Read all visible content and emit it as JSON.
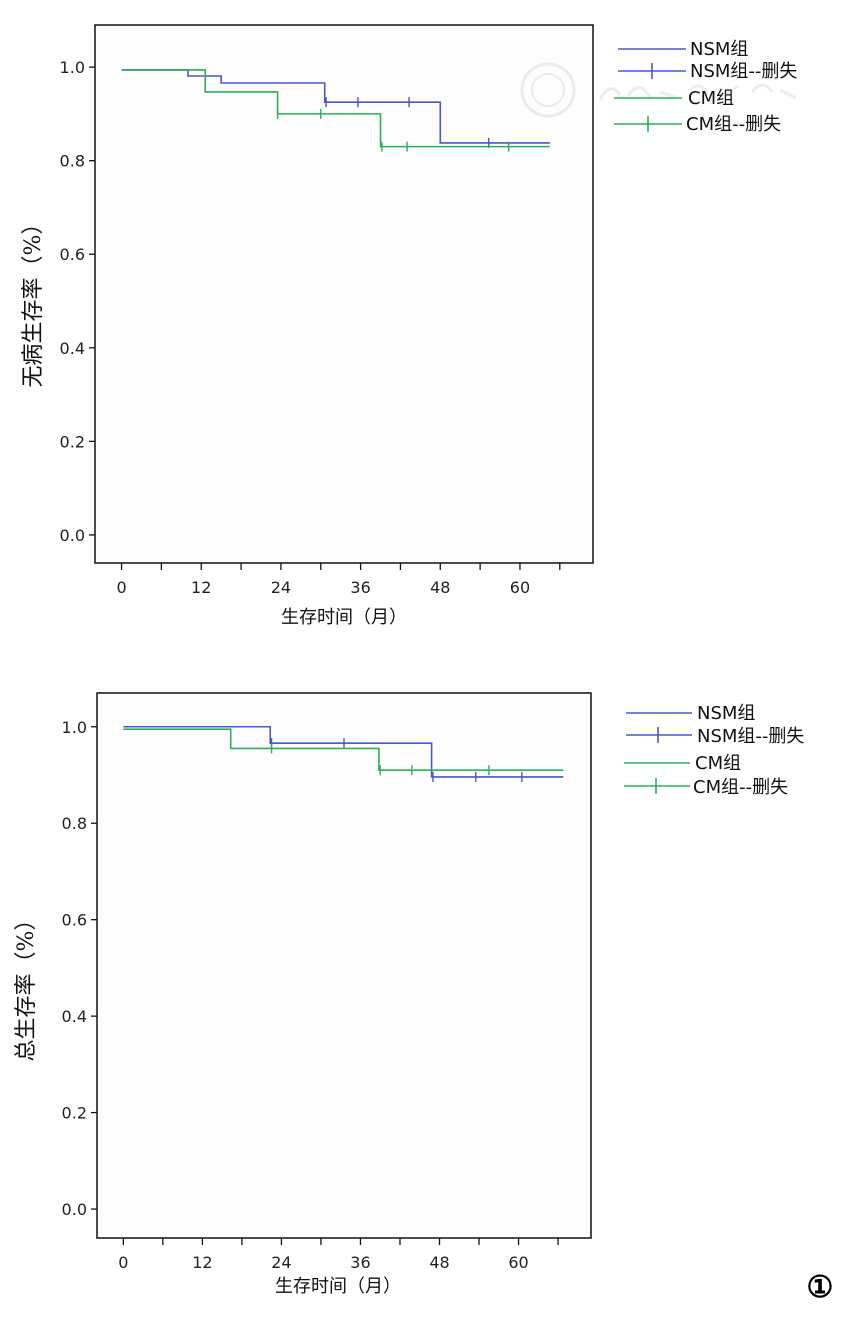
{
  "colors": {
    "nsm": "#4a56c8",
    "cm": "#2fae5a"
  },
  "panel_number": "①",
  "chart_data": [
    {
      "type": "line",
      "step": true,
      "xlabel": "生存时间（月）",
      "ylabel": "无病生存率（%）",
      "xticks": [
        0,
        12,
        24,
        36,
        48,
        60
      ],
      "xtick_labels": [
        "0",
        "12",
        "24",
        "36",
        "48",
        "60"
      ],
      "yticks": [
        0.0,
        0.2,
        0.4,
        0.6,
        0.8,
        1.0
      ],
      "ytick_labels": [
        "0.0",
        "0.2",
        "0.4",
        "0.6",
        "0.8",
        "1.0"
      ],
      "xlim": [
        -4,
        71
      ],
      "ylim": [
        -0.06,
        1.09
      ],
      "grid": false,
      "legend_position": "right, outside plot",
      "legend": [
        "NSM组",
        "NSM组--删失",
        "CM组",
        "CM组--删失"
      ],
      "series": [
        {
          "name": "NSM组",
          "color_key": "nsm",
          "steps": [
            [
              0,
              0.994
            ],
            [
              10,
              0.981
            ],
            [
              15,
              0.966
            ],
            [
              30.6,
              0.925
            ],
            [
              48,
              0.838
            ],
            [
              64.5,
              0.838
            ]
          ],
          "censored": [
            [
              30.8,
              0.925
            ],
            [
              35.6,
              0.925
            ],
            [
              43.3,
              0.925
            ],
            [
              55.3,
              0.838
            ]
          ]
        },
        {
          "name": "CM组",
          "color_key": "cm",
          "steps": [
            [
              0,
              0.994
            ],
            [
              12.6,
              0.947
            ],
            [
              23.5,
              0.9
            ],
            [
              39,
              0.83
            ],
            [
              64.5,
              0.83
            ]
          ],
          "censored": [
            [
              23.5,
              0.9
            ],
            [
              30,
              0.9
            ],
            [
              39.2,
              0.83
            ],
            [
              43,
              0.83
            ],
            [
              58.3,
              0.83
            ]
          ]
        }
      ]
    },
    {
      "type": "line",
      "step": true,
      "xlabel": "生存时间（月）",
      "ylabel": "总生存率（%）",
      "xticks": [
        0,
        12,
        24,
        36,
        48,
        60
      ],
      "xtick_labels": [
        "0",
        "12",
        "24",
        "36",
        "48",
        "60"
      ],
      "yticks": [
        0.0,
        0.2,
        0.4,
        0.6,
        0.8,
        1.0
      ],
      "ytick_labels": [
        "0.0",
        "0.2",
        "0.4",
        "0.6",
        "0.8",
        "1.0"
      ],
      "xlim": [
        -4,
        71
      ],
      "ylim": [
        -0.06,
        1.07
      ],
      "grid": false,
      "legend_position": "right, outside plot",
      "legend": [
        "NSM组",
        "NSM组--删失",
        "CM组",
        "CM组--删失"
      ],
      "series": [
        {
          "name": "NSM组",
          "color_key": "nsm",
          "steps": [
            [
              0,
              1.0
            ],
            [
              22.3,
              0.966
            ],
            [
              46.8,
              0.896
            ],
            [
              66.8,
              0.896
            ]
          ],
          "censored": [
            [
              22.5,
              0.966
            ],
            [
              33.5,
              0.966
            ],
            [
              47,
              0.896
            ],
            [
              53.5,
              0.896
            ],
            [
              60.5,
              0.896
            ]
          ]
        },
        {
          "name": "CM组",
          "color_key": "cm",
          "steps": [
            [
              0,
              0.995
            ],
            [
              16.3,
              0.955
            ],
            [
              38.8,
              0.91
            ],
            [
              66.8,
              0.91
            ]
          ],
          "censored": [
            [
              22.5,
              0.955
            ],
            [
              39,
              0.91
            ],
            [
              43.8,
              0.91
            ],
            [
              55.5,
              0.91
            ]
          ]
        }
      ]
    }
  ]
}
